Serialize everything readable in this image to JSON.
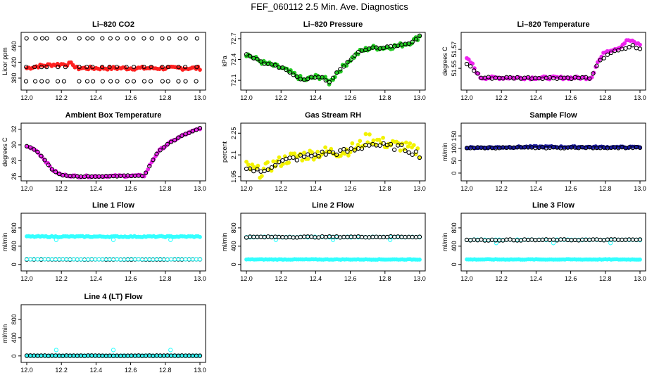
{
  "page": {
    "title": "FEF_060112  2.5 Min. Ave. Diagnostics"
  },
  "colors": {
    "red": "#ff2020",
    "green": "#22cc22",
    "magenta": "#ee22ee",
    "yellow": "#f2f200",
    "navy": "#1a1aa0",
    "cyan": "#33ffff",
    "black": "#000000"
  },
  "chart_data": [
    {
      "id": "co2",
      "type": "scatter",
      "title": "Li–820 CO2",
      "ylabel": "Licor ppm",
      "xlim": [
        12.0,
        13.0
      ],
      "ylim": [
        357,
        488
      ],
      "xticks": [
        12.0,
        12.2,
        12.4,
        12.6,
        12.8,
        13.0
      ],
      "yticks": [
        380,
        420,
        460
      ],
      "series": [
        {
          "name": "red",
          "color": "#ff2020",
          "shape": "band",
          "knots": [
            [
              12.0,
              405
            ],
            [
              12.06,
              410
            ],
            [
              12.15,
              414
            ],
            [
              12.27,
              416
            ],
            [
              12.28,
              405
            ],
            [
              13.0,
              405
            ]
          ],
          "spread": 4
        },
        {
          "name": "black",
          "color": "#000000",
          "shape": "bands",
          "levels": [
            480,
            408,
            372
          ],
          "xs": [
            12.0,
            12.05,
            12.09,
            12.12,
            12.18,
            12.22,
            12.3,
            12.35,
            12.38,
            12.44,
            12.48,
            12.52,
            12.58,
            12.62,
            12.68,
            12.72,
            12.78,
            12.82,
            12.88,
            12.92,
            12.98
          ]
        }
      ]
    },
    {
      "id": "pressure",
      "type": "scatter",
      "title": "Li–820 Pressure",
      "ylabel": "kPa",
      "xlim": [
        12.0,
        13.0
      ],
      "ylim": [
        72.0,
        72.75
      ],
      "xticks": [
        12.0,
        12.2,
        12.4,
        12.6,
        12.8,
        13.0
      ],
      "yticks": [
        72.1,
        72.4,
        72.7
      ],
      "series": [
        {
          "name": "green",
          "color": "#22cc22",
          "shape": "band",
          "knots": [
            [
              12.0,
              72.48
            ],
            [
              12.1,
              72.35
            ],
            [
              12.2,
              72.28
            ],
            [
              12.28,
              72.18
            ],
            [
              12.33,
              72.1
            ],
            [
              12.4,
              72.15
            ],
            [
              12.44,
              72.15
            ],
            [
              12.48,
              72.06
            ],
            [
              12.52,
              72.2
            ],
            [
              12.6,
              72.4
            ],
            [
              12.66,
              72.52
            ],
            [
              12.72,
              72.57
            ],
            [
              12.8,
              72.57
            ],
            [
              12.88,
              72.6
            ],
            [
              12.95,
              72.65
            ],
            [
              13.0,
              72.73
            ]
          ],
          "spread": 0.035
        },
        {
          "name": "black",
          "color": "#000000",
          "shape": "track",
          "knots": [
            [
              12.0,
              72.48
            ],
            [
              12.1,
              72.35
            ],
            [
              12.2,
              72.28
            ],
            [
              12.28,
              72.18
            ],
            [
              12.33,
              72.1
            ],
            [
              12.4,
              72.15
            ],
            [
              12.44,
              72.15
            ],
            [
              12.48,
              72.06
            ],
            [
              12.52,
              72.2
            ],
            [
              12.6,
              72.4
            ],
            [
              12.66,
              72.52
            ],
            [
              12.72,
              72.57
            ],
            [
              12.8,
              72.57
            ],
            [
              12.88,
              72.6
            ],
            [
              12.95,
              72.65
            ],
            [
              13.0,
              72.73
            ]
          ],
          "spread": 0.015
        }
      ]
    },
    {
      "id": "li820temp",
      "type": "scatter",
      "title": "Li–820 Temperature",
      "ylabel": "degrees C",
      "xlim": [
        12.0,
        13.0
      ],
      "ylim": [
        51.53,
        51.585
      ],
      "xticks": [
        12.0,
        12.2,
        12.4,
        12.6,
        12.8,
        13.0
      ],
      "yticks": [
        51.55,
        51.57
      ],
      "series": [
        {
          "name": "magenta",
          "color": "#ee22ee",
          "shape": "band",
          "knots": [
            [
              12.0,
              51.56
            ],
            [
              12.03,
              51.555
            ],
            [
              12.06,
              51.545
            ],
            [
              12.08,
              51.54
            ],
            [
              12.72,
              51.54
            ],
            [
              12.75,
              51.555
            ],
            [
              12.8,
              51.568
            ],
            [
              12.88,
              51.572
            ],
            [
              12.93,
              51.58
            ],
            [
              13.0,
              51.575
            ]
          ],
          "spread": 0.0015
        },
        {
          "name": "black",
          "color": "#000000",
          "shape": "track",
          "knots": [
            [
              12.0,
              51.555
            ],
            [
              12.06,
              51.545
            ],
            [
              12.08,
              51.54
            ],
            [
              12.72,
              51.54
            ],
            [
              12.76,
              51.556
            ],
            [
              12.82,
              51.566
            ],
            [
              12.9,
              51.57
            ],
            [
              12.96,
              51.574
            ],
            [
              13.0,
              51.57
            ]
          ],
          "spread": 0.001
        }
      ]
    },
    {
      "id": "ambient",
      "type": "scatter",
      "title": "Ambient Box Temperature",
      "ylabel": "degrees C",
      "xlim": [
        12.0,
        13.0
      ],
      "ylim": [
        25.8,
        32.4
      ],
      "xticks": [
        12.0,
        12.2,
        12.4,
        12.6,
        12.8,
        13.0
      ],
      "yticks": [
        26,
        28,
        30,
        32
      ],
      "series": [
        {
          "name": "magenta",
          "color": "#ee22ee",
          "shape": "band",
          "knots": [
            [
              12.0,
              29.8
            ],
            [
              12.05,
              29.4
            ],
            [
              12.1,
              28.2
            ],
            [
              12.15,
              26.8
            ],
            [
              12.2,
              26.2
            ],
            [
              12.3,
              26.0
            ],
            [
              12.68,
              26.1
            ],
            [
              12.72,
              27.8
            ],
            [
              12.76,
              29.2
            ],
            [
              12.82,
              30.2
            ],
            [
              12.9,
              31.2
            ],
            [
              13.0,
              32.1
            ]
          ],
          "spread": 0.12
        },
        {
          "name": "black",
          "color": "#000000",
          "shape": "track",
          "knots": [
            [
              12.0,
              29.8
            ],
            [
              12.05,
              29.4
            ],
            [
              12.1,
              28.2
            ],
            [
              12.15,
              26.8
            ],
            [
              12.2,
              26.2
            ],
            [
              12.3,
              26.0
            ],
            [
              12.68,
              26.1
            ],
            [
              12.72,
              27.8
            ],
            [
              12.76,
              29.2
            ],
            [
              12.82,
              30.2
            ],
            [
              12.9,
              31.2
            ],
            [
              13.0,
              32.1
            ]
          ],
          "spread": 0.05
        }
      ]
    },
    {
      "id": "rh",
      "type": "scatter",
      "title": "Gas Stream RH",
      "ylabel": "percent",
      "xlim": [
        12.0,
        13.0
      ],
      "ylim": [
        1.94,
        2.3
      ],
      "xticks": [
        12.0,
        12.2,
        12.4,
        12.6,
        12.8,
        13.0
      ],
      "yticks": [
        1.95,
        2.1,
        2.25
      ],
      "series": [
        {
          "name": "yellow",
          "color": "#f2f200",
          "shape": "band",
          "knots": [
            [
              12.0,
              2.02
            ],
            [
              12.08,
              1.98
            ],
            [
              12.15,
              2.03
            ],
            [
              12.25,
              2.08
            ],
            [
              12.35,
              2.1
            ],
            [
              12.45,
              2.12
            ],
            [
              12.55,
              2.12
            ],
            [
              12.65,
              2.16
            ],
            [
              12.7,
              2.22
            ],
            [
              12.8,
              2.18
            ],
            [
              12.9,
              2.16
            ],
            [
              13.0,
              2.12
            ]
          ],
          "spread": 0.04
        },
        {
          "name": "black",
          "color": "#000000",
          "shape": "track",
          "knots": [
            [
              12.0,
              2.01
            ],
            [
              12.08,
              1.98
            ],
            [
              12.15,
              2.03
            ],
            [
              12.25,
              2.07
            ],
            [
              12.35,
              2.09
            ],
            [
              12.45,
              2.11
            ],
            [
              12.55,
              2.12
            ],
            [
              12.65,
              2.14
            ],
            [
              12.7,
              2.18
            ],
            [
              12.8,
              2.16
            ],
            [
              12.9,
              2.15
            ],
            [
              13.0,
              2.1
            ]
          ],
          "spread": 0.02
        }
      ]
    },
    {
      "id": "sampleflow",
      "type": "scatter",
      "title": "Sample Flow",
      "ylabel": "ml/min",
      "xlim": [
        12.0,
        13.0
      ],
      "ylim": [
        -20,
        190
      ],
      "xticks": [
        12.0,
        12.2,
        12.4,
        12.6,
        12.8,
        13.0
      ],
      "yticks": [
        0,
        50,
        100,
        150
      ],
      "series": [
        {
          "name": "navy",
          "color": "#1a1aa0",
          "shape": "band",
          "knots": [
            [
              12.0,
              102
            ],
            [
              12.4,
              106
            ],
            [
              13.0,
              104
            ]
          ],
          "spread": 3
        },
        {
          "name": "black",
          "color": "#000000",
          "shape": "track",
          "knots": [
            [
              12.0,
              102
            ],
            [
              13.0,
              103
            ]
          ],
          "spread": 2
        }
      ]
    },
    {
      "id": "line1",
      "type": "scatter",
      "title": "Line 1 Flow",
      "ylabel": "ml/min",
      "xlim": [
        12.0,
        13.0
      ],
      "ylim": [
        -80,
        1060
      ],
      "xticks": [
        12.0,
        12.2,
        12.4,
        12.6,
        12.8,
        13.0
      ],
      "yticks": [
        0,
        400,
        800
      ],
      "series": [
        {
          "name": "cyan",
          "color": "#33ffff",
          "shape": "band",
          "knots": [
            [
              12.0,
              610
            ],
            [
              13.0,
              610
            ]
          ],
          "spread": 12,
          "outliers": [
            [
              12.17,
              540
            ],
            [
              12.5,
              540
            ],
            [
              12.83,
              540
            ]
          ]
        },
        {
          "name": "black",
          "color": "#000000",
          "shape": "track",
          "knots": [
            [
              12.0,
              110
            ],
            [
              13.0,
              110
            ]
          ],
          "spread": 4
        },
        {
          "name": "cyan2",
          "color": "#33ffff",
          "shape": "track",
          "knots": [
            [
              12.0,
              115
            ],
            [
              13.0,
              115
            ]
          ],
          "spread": 3
        }
      ]
    },
    {
      "id": "line2",
      "type": "scatter",
      "title": "Line 2 Flow",
      "ylabel": "ml/min",
      "xlim": [
        12.0,
        13.0
      ],
      "ylim": [
        -80,
        1060
      ],
      "xticks": [
        12.0,
        12.2,
        12.4,
        12.6,
        12.8,
        13.0
      ],
      "yticks": [
        0,
        400,
        800
      ],
      "series": [
        {
          "name": "cyan",
          "color": "#33ffff",
          "shape": "band",
          "knots": [
            [
              12.0,
              110
            ],
            [
              13.0,
              110
            ]
          ],
          "spread": 6
        },
        {
          "name": "cyan2",
          "color": "#33ffff",
          "shape": "track",
          "knots": [
            [
              12.0,
              600
            ],
            [
              13.0,
              600
            ]
          ],
          "spread": 6,
          "outliers": [
            [
              12.17,
              540
            ],
            [
              12.5,
              540
            ],
            [
              12.83,
              540
            ]
          ]
        },
        {
          "name": "black",
          "color": "#000000",
          "shape": "track",
          "knots": [
            [
              12.0,
              600
            ],
            [
              13.0,
              605
            ]
          ],
          "spread": 10
        }
      ]
    },
    {
      "id": "line3",
      "type": "scatter",
      "title": "Line 3 Flow",
      "ylabel": "ml/min",
      "xlim": [
        12.0,
        13.0
      ],
      "ylim": [
        -80,
        1060
      ],
      "xticks": [
        12.0,
        12.2,
        12.4,
        12.6,
        12.8,
        13.0
      ],
      "yticks": [
        0,
        400,
        800
      ],
      "series": [
        {
          "name": "cyan",
          "color": "#33ffff",
          "shape": "band",
          "knots": [
            [
              12.0,
              110
            ],
            [
              13.0,
              110
            ]
          ],
          "spread": 6
        },
        {
          "name": "cyan2",
          "color": "#33ffff",
          "shape": "track",
          "knots": [
            [
              12.0,
              540
            ],
            [
              13.0,
              540
            ]
          ],
          "spread": 6,
          "outliers": [
            [
              12.17,
              470
            ],
            [
              12.5,
              470
            ],
            [
              12.83,
              470
            ]
          ]
        },
        {
          "name": "black",
          "color": "#000000",
          "shape": "track",
          "knots": [
            [
              12.0,
              535
            ],
            [
              13.0,
              540
            ]
          ],
          "spread": 10
        }
      ]
    },
    {
      "id": "line4",
      "type": "scatter",
      "title": "Line 4 (LT) Flow",
      "ylabel": "ml/min",
      "xlim": [
        12.0,
        13.0
      ],
      "ylim": [
        -80,
        1060
      ],
      "xticks": [
        12.0,
        12.2,
        12.4,
        12.6,
        12.8,
        13.0
      ],
      "yticks": [
        0,
        400,
        800
      ],
      "series": [
        {
          "name": "cyan",
          "color": "#33ffff",
          "shape": "band",
          "knots": [
            [
              12.0,
              5
            ],
            [
              13.0,
              5
            ]
          ],
          "spread": 3,
          "outliers": [
            [
              12.17,
              130
            ],
            [
              12.5,
              130
            ],
            [
              12.83,
              130
            ]
          ]
        },
        {
          "name": "black",
          "color": "#000000",
          "shape": "track",
          "knots": [
            [
              12.0,
              5
            ],
            [
              13.0,
              5
            ]
          ],
          "spread": 3
        }
      ]
    }
  ]
}
